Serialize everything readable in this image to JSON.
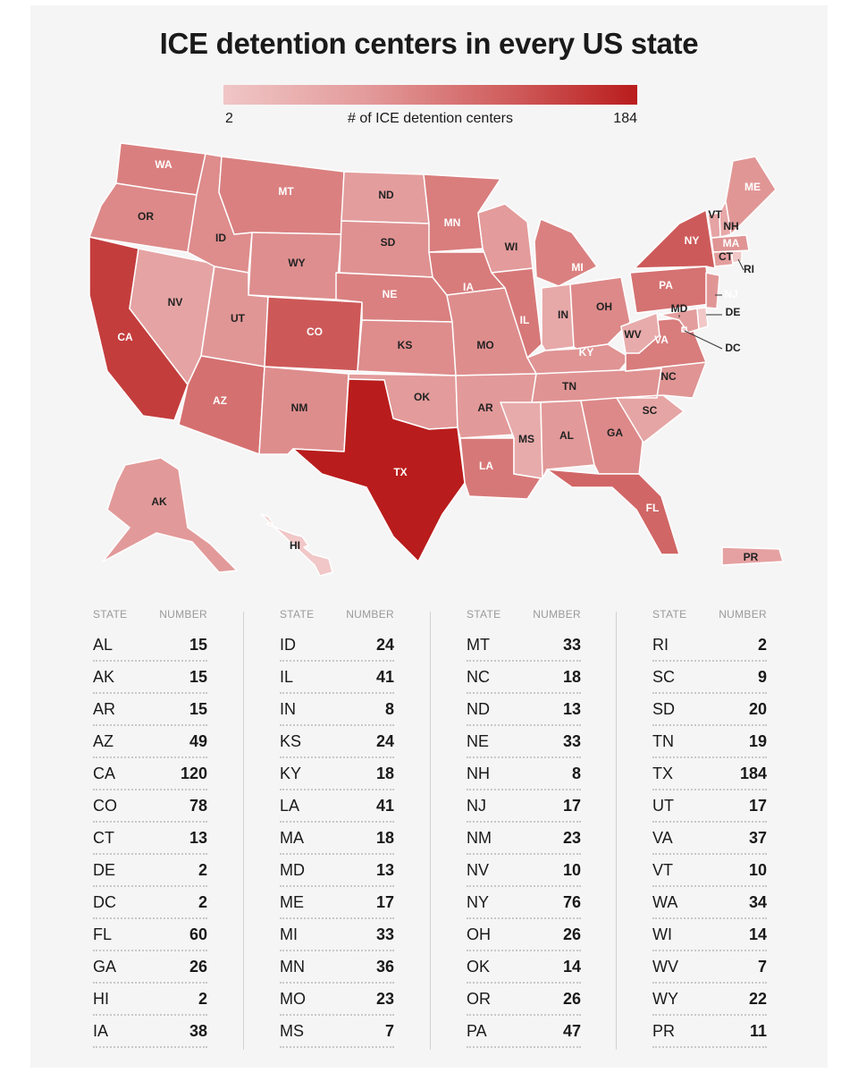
{
  "title": "ICE detention centers in every US state",
  "legend": {
    "min": "2",
    "label": "# of ICE detention centers",
    "max": "184"
  },
  "table_headers": {
    "state": "STATE",
    "number": "NUMBER"
  },
  "colors": {
    "low": "#f0c6c6",
    "high": "#b91c1c",
    "background": "#f6f5f5"
  },
  "chart_data": {
    "type": "table",
    "title": "ICE detention centers in every US state",
    "columns": [
      "STATE",
      "NUMBER"
    ],
    "rows": [
      [
        "AL",
        15
      ],
      [
        "AK",
        15
      ],
      [
        "AR",
        15
      ],
      [
        "AZ",
        49
      ],
      [
        "CA",
        120
      ],
      [
        "CO",
        78
      ],
      [
        "CT",
        13
      ],
      [
        "DE",
        2
      ],
      [
        "DC",
        2
      ],
      [
        "FL",
        60
      ],
      [
        "GA",
        26
      ],
      [
        "HI",
        2
      ],
      [
        "IA",
        38
      ],
      [
        "ID",
        24
      ],
      [
        "IL",
        41
      ],
      [
        "IN",
        8
      ],
      [
        "KS",
        24
      ],
      [
        "KY",
        18
      ],
      [
        "LA",
        41
      ],
      [
        "MA",
        18
      ],
      [
        "MD",
        13
      ],
      [
        "ME",
        17
      ],
      [
        "MI",
        33
      ],
      [
        "MN",
        36
      ],
      [
        "MO",
        23
      ],
      [
        "MS",
        7
      ],
      [
        "MT",
        33
      ],
      [
        "NC",
        18
      ],
      [
        "ND",
        13
      ],
      [
        "NE",
        33
      ],
      [
        "NH",
        8
      ],
      [
        "NJ",
        17
      ],
      [
        "NM",
        23
      ],
      [
        "NV",
        10
      ],
      [
        "NY",
        76
      ],
      [
        "OH",
        26
      ],
      [
        "OK",
        14
      ],
      [
        "OR",
        26
      ],
      [
        "PA",
        47
      ],
      [
        "RI",
        2
      ],
      [
        "SC",
        9
      ],
      [
        "SD",
        20
      ],
      [
        "TN",
        19
      ],
      [
        "TX",
        184
      ],
      [
        "UT",
        17
      ],
      [
        "VA",
        37
      ],
      [
        "VT",
        10
      ],
      [
        "WA",
        34
      ],
      [
        "WI",
        14
      ],
      [
        "WV",
        7
      ],
      [
        "WY",
        22
      ],
      [
        "PR",
        11
      ]
    ],
    "color_scale": {
      "min": 2,
      "max": 184
    }
  }
}
